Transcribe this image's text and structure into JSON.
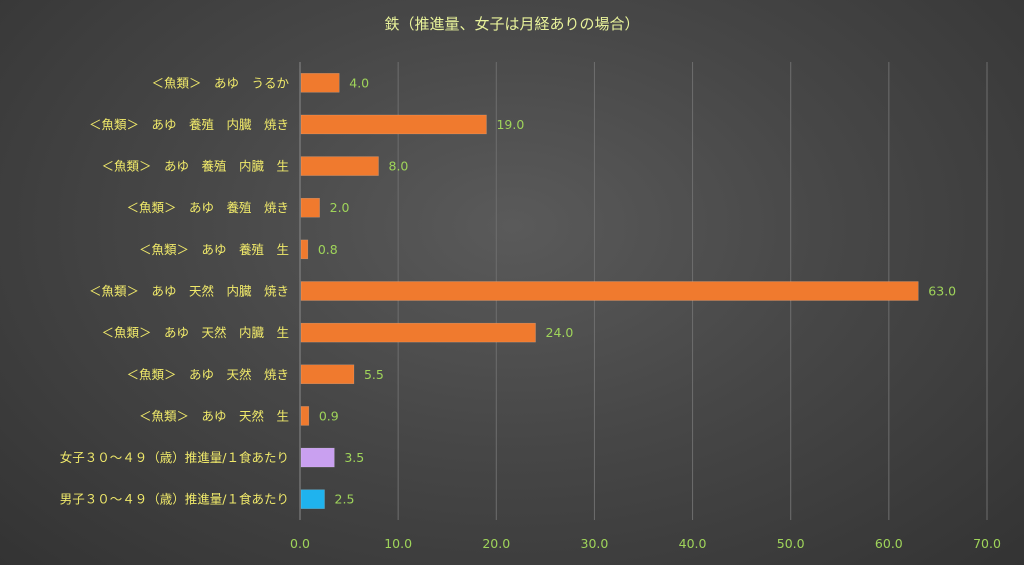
{
  "chart_data": {
    "type": "bar",
    "orientation": "horizontal",
    "title": "鉄（推進量、女子は月経ありの場合）",
    "categories": [
      "＜魚類＞　あゆ　うるか",
      "＜魚類＞　あゆ　養殖　内臓　焼き",
      "＜魚類＞　あゆ　養殖　内臓　生",
      "＜魚類＞　あゆ　養殖　焼き",
      "＜魚類＞　あゆ　養殖　生",
      "＜魚類＞　あゆ　天然　内臓　焼き",
      "＜魚類＞　あゆ　天然　内臓　生",
      "＜魚類＞　あゆ　天然　焼き",
      "＜魚類＞　あゆ　天然　生",
      "女子３０～４９（歳）推進量/１食あたり",
      "男子３０～４９（歳）推進量/１食あたり"
    ],
    "values": [
      4.0,
      19.0,
      8.0,
      2.0,
      0.8,
      63.0,
      24.0,
      5.5,
      0.9,
      3.5,
      2.5
    ],
    "value_labels": [
      "4.0",
      "19.0",
      "8.0",
      "2.0",
      "0.8",
      "63.0",
      "24.0",
      "5.5",
      "0.9",
      "3.5",
      "2.5"
    ],
    "bar_colors": [
      "#f07a2e",
      "#f07a2e",
      "#f07a2e",
      "#f07a2e",
      "#f07a2e",
      "#f07a2e",
      "#f07a2e",
      "#f07a2e",
      "#f07a2e",
      "#c9a0f0",
      "#1fb3ee"
    ],
    "xlim": [
      0,
      70
    ],
    "xticks": [
      0,
      10,
      20,
      30,
      40,
      50,
      60,
      70
    ],
    "xtick_labels": [
      "0.0",
      "10.0",
      "20.0",
      "30.0",
      "40.0",
      "50.0",
      "60.0",
      "70.0"
    ],
    "grid": true,
    "legend": "none"
  }
}
